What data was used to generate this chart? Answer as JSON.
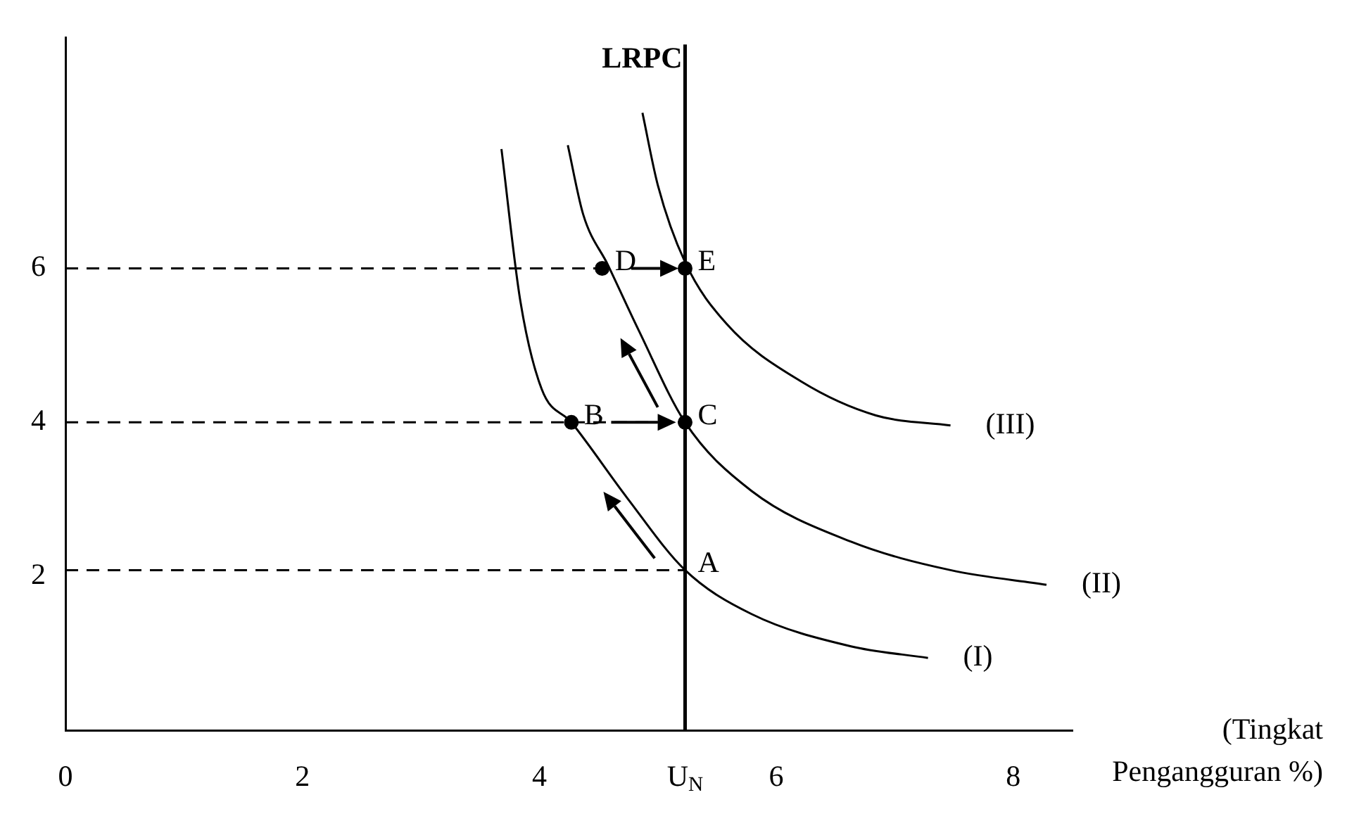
{
  "chart_data": {
    "type": "line",
    "xlabel": "(Tingkat Pengangguran %)",
    "xlim": [
      0,
      8.5
    ],
    "ylim": [
      0,
      9
    ],
    "xticks": [
      0,
      2,
      4,
      {
        "value": 5.23,
        "label": "U$_{N}$"
      },
      6,
      8
    ],
    "yticks": [
      2,
      4,
      6
    ],
    "grid": false,
    "legend": false,
    "series": [
      {
        "name": "(I)",
        "color": "#000000",
        "marker": "none",
        "line_style": "solid",
        "x": [
          3.68,
          3.84,
          4.02,
          4.27,
          4.74,
          5.23,
          5.79,
          6.63,
          7.28
        ],
        "values": [
          7.55,
          5.57,
          4.43,
          4.0,
          3.02,
          2.08,
          1.51,
          1.09,
          0.94
        ]
      },
      {
        "name": "(II)",
        "color": "#000000",
        "marker": "none",
        "line_style": "solid",
        "x": [
          4.24,
          4.37,
          4.58,
          4.84,
          5.23,
          5.79,
          6.63,
          7.47,
          8.28
        ],
        "values": [
          7.6,
          6.7,
          6.04,
          5.19,
          4.0,
          3.11,
          2.45,
          2.08,
          1.89
        ]
      },
      {
        "name": "(III)",
        "color": "#000000",
        "marker": "none",
        "line_style": "solid",
        "x": [
          4.87,
          5.0,
          5.23,
          5.58,
          6.21,
          6.84,
          7.47
        ],
        "values": [
          8.02,
          7.08,
          6.08,
          5.28,
          4.53,
          4.09,
          3.96
        ]
      },
      {
        "color": "#000000",
        "marker": "none",
        "line_style": "dashed",
        "x": [
          0,
          4.53
        ],
        "values": [
          6,
          6
        ]
      },
      {
        "color": "#000000",
        "marker": "none",
        "line_style": "dashed",
        "x": [
          0,
          5.23
        ],
        "values": [
          4,
          4
        ]
      },
      {
        "color": "#000000",
        "marker": "none",
        "line_style": "dashed",
        "x": [
          0,
          5.23
        ],
        "values": [
          2.08,
          2.08
        ]
      },
      {
        "type": "scatter",
        "color": "#000000",
        "marker": "circle",
        "x": [
          4.27,
          5.23,
          4.53,
          5.23
        ],
        "values": [
          4,
          4,
          6,
          6
        ]
      }
    ],
    "ref_lines": [
      {
        "axis": "x",
        "value": 5.23,
        "label": "LRPC",
        "color": "#000000",
        "line_style": "solid"
      }
    ],
    "annotations": [
      {
        "text": "A",
        "x": 5.23,
        "y": 2.08
      },
      {
        "text": "B",
        "x": 4.27,
        "y": 4
      },
      {
        "text": "C",
        "x": 5.23,
        "y": 4
      },
      {
        "text": "D",
        "x": 4.53,
        "y": 6
      },
      {
        "text": "E",
        "x": 5.23,
        "y": 6
      }
    ]
  }
}
